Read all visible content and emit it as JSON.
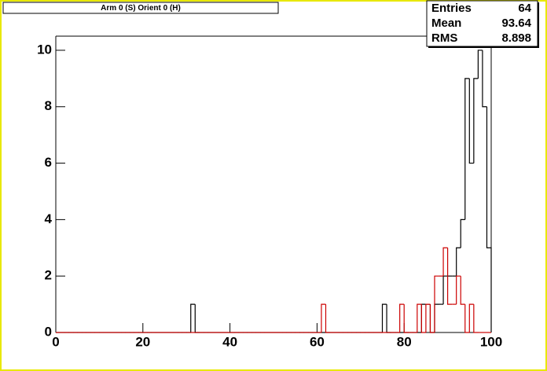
{
  "chart_data": {
    "type": "histogram",
    "title": "Arm 0 (S) Orient 0 (H)",
    "stats": {
      "labels": [
        "Entries",
        "Mean",
        "RMS"
      ],
      "values": [
        64,
        93.64,
        8.898
      ]
    },
    "bins": [
      0,
      1,
      2,
      3,
      4,
      5,
      6,
      7,
      8,
      9,
      10,
      11,
      12,
      13,
      14,
      15,
      16,
      17,
      18,
      19,
      20,
      21,
      22,
      23,
      24,
      25,
      26,
      27,
      28,
      29,
      30,
      31,
      32,
      33,
      34,
      35,
      36,
      37,
      38,
      39,
      40,
      41,
      42,
      43,
      44,
      45,
      46,
      47,
      48,
      49,
      50,
      51,
      52,
      53,
      54,
      55,
      56,
      57,
      58,
      59,
      60,
      61,
      62,
      63,
      64,
      65,
      66,
      67,
      68,
      69,
      70,
      71,
      72,
      73,
      74,
      75,
      76,
      77,
      78,
      79,
      80,
      81,
      82,
      83,
      84,
      85,
      86,
      87,
      88,
      89,
      90,
      91,
      92,
      93,
      94,
      95,
      96,
      97,
      98,
      99,
      100
    ],
    "series": [
      {
        "color": "#000000",
        "values": [
          0,
          0,
          0,
          0,
          0,
          0,
          0,
          0,
          0,
          0,
          0,
          0,
          0,
          0,
          0,
          0,
          0,
          0,
          0,
          0,
          0,
          0,
          0,
          0,
          0,
          0,
          0,
          0,
          0,
          0,
          0,
          1,
          0,
          0,
          0,
          0,
          0,
          0,
          0,
          0,
          0,
          0,
          0,
          0,
          0,
          0,
          0,
          0,
          0,
          0,
          0,
          0,
          0,
          0,
          0,
          0,
          0,
          0,
          0,
          0,
          0,
          0,
          0,
          0,
          0,
          0,
          0,
          0,
          0,
          0,
          0,
          0,
          0,
          0,
          0,
          1,
          0,
          0,
          0,
          0,
          0,
          0,
          0,
          0,
          1,
          1,
          0,
          1,
          1,
          2,
          2,
          2,
          3,
          4,
          9,
          6,
          9,
          10,
          8,
          3
        ]
      },
      {
        "color": "#cc0000",
        "values": [
          0,
          0,
          0,
          0,
          0,
          0,
          0,
          0,
          0,
          0,
          0,
          0,
          0,
          0,
          0,
          0,
          0,
          0,
          0,
          0,
          0,
          0,
          0,
          0,
          0,
          0,
          0,
          0,
          0,
          0,
          0,
          0,
          0,
          0,
          0,
          0,
          0,
          0,
          0,
          0,
          0,
          0,
          0,
          0,
          0,
          0,
          0,
          0,
          0,
          0,
          0,
          0,
          0,
          0,
          0,
          0,
          0,
          0,
          0,
          0,
          0,
          1,
          0,
          0,
          0,
          0,
          0,
          0,
          0,
          0,
          0,
          0,
          0,
          0,
          0,
          0,
          0,
          0,
          0,
          1,
          0,
          0,
          0,
          1,
          0,
          1,
          0,
          2,
          2,
          3,
          1,
          1,
          2,
          1,
          0,
          1,
          0,
          0,
          0,
          0
        ]
      }
    ],
    "xlim": [
      0,
      100
    ],
    "xticks": [
      0,
      20,
      40,
      60,
      80,
      100
    ],
    "ylim": [
      0,
      10.5
    ],
    "yticks": [
      0,
      2,
      4,
      6,
      8,
      10
    ]
  }
}
